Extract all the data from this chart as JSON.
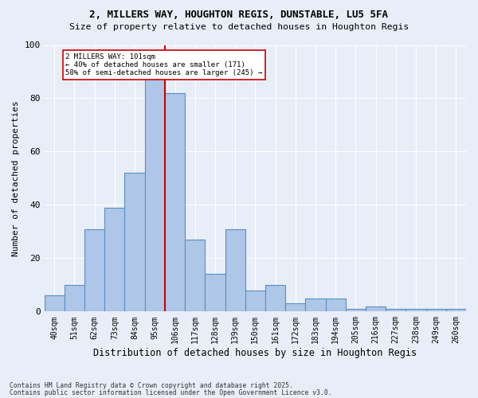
{
  "title1": "2, MILLERS WAY, HOUGHTON REGIS, DUNSTABLE, LU5 5FA",
  "title2": "Size of property relative to detached houses in Houghton Regis",
  "xlabel": "Distribution of detached houses by size in Houghton Regis",
  "ylabel": "Number of detached properties",
  "categories": [
    "40sqm",
    "51sqm",
    "62sqm",
    "73sqm",
    "84sqm",
    "95sqm",
    "106sqm",
    "117sqm",
    "128sqm",
    "139sqm",
    "150sqm",
    "161sqm",
    "172sqm",
    "183sqm",
    "194sqm",
    "205sqm",
    "216sqm",
    "227sqm",
    "238sqm",
    "249sqm",
    "260sqm"
  ],
  "values": [
    6,
    10,
    31,
    39,
    52,
    88,
    82,
    27,
    14,
    31,
    8,
    10,
    3,
    5,
    5,
    1,
    2,
    1,
    1,
    1,
    1
  ],
  "bar_color": "#aec6e8",
  "bar_edge_color": "#5a8fc2",
  "vline_x": 5.5,
  "vline_color": "#cc0000",
  "annotation_text": "2 MILLERS WAY: 101sqm\n← 40% of detached houses are smaller (171)\n58% of semi-detached houses are larger (245) →",
  "annotation_box_color": "#ffffff",
  "annotation_box_edge": "#cc0000",
  "background_color": "#e8eef7",
  "footer1": "Contains HM Land Registry data © Crown copyright and database right 2025.",
  "footer2": "Contains public sector information licensed under the Open Government Licence v3.0.",
  "ylim": [
    0,
    100
  ],
  "yticks": [
    0,
    20,
    40,
    60,
    80,
    100
  ]
}
